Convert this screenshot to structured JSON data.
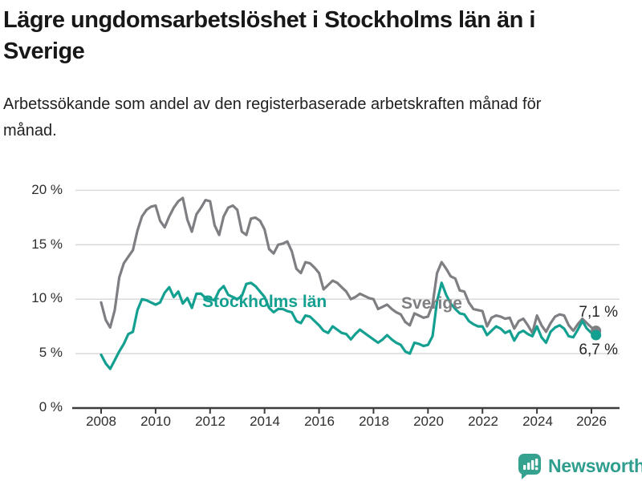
{
  "header": {
    "title": "Lägre ungdomsarbetslöshet i Stockholms län än i Sverige",
    "subtitle": "Arbetssökande som andel av den registerbaserade arbetskraften månad för månad."
  },
  "chart_data": {
    "type": "line",
    "title": "Lägre ungdomsarbetslöshet i Stockholms län än i Sverige",
    "xlabel": "",
    "ylabel": "",
    "x_start": 2008.0,
    "x_step": 0.1666667,
    "xlim": [
      2007.0,
      2027.0
    ],
    "ylim": [
      0,
      21
    ],
    "grid": "horizontal",
    "legend_position": "inline-labels",
    "y_tick_labels": [
      "20 %",
      "15 %",
      "10 %",
      "5 %",
      "0 %"
    ],
    "y_tick_values": [
      20,
      15,
      10,
      5,
      0
    ],
    "x_tick_labels": [
      "2008",
      "2010",
      "2012",
      "2014",
      "2016",
      "2018",
      "2020",
      "2022",
      "2024",
      "2026"
    ],
    "x_tick_values": [
      2008,
      2010,
      2012,
      2014,
      2016,
      2018,
      2020,
      2022,
      2024,
      2026
    ],
    "series": [
      {
        "name": "Sverige",
        "color": "#7f7f83",
        "end_value": 7.1,
        "end_label": "7,1 %",
        "values": [
          9.7,
          8.1,
          7.4,
          9.0,
          12.0,
          13.3,
          13.9,
          14.5,
          16.3,
          17.6,
          18.2,
          18.5,
          18.6,
          17.2,
          16.6,
          17.6,
          18.4,
          19.0,
          19.3,
          17.3,
          16.2,
          17.8,
          18.4,
          19.1,
          19.0,
          16.8,
          15.9,
          17.6,
          18.4,
          18.6,
          18.2,
          16.2,
          15.9,
          17.4,
          17.5,
          17.2,
          16.4,
          14.6,
          14.2,
          15.0,
          15.1,
          15.3,
          14.4,
          12.8,
          12.4,
          13.4,
          13.3,
          12.9,
          12.4,
          10.9,
          11.3,
          11.7,
          11.5,
          11.1,
          10.7,
          10.0,
          10.2,
          10.5,
          10.3,
          10.1,
          10.0,
          9.1,
          9.3,
          9.5,
          9.1,
          8.8,
          8.6,
          7.9,
          7.6,
          8.7,
          8.5,
          8.3,
          8.4,
          9.5,
          12.4,
          13.4,
          12.8,
          12.1,
          11.9,
          10.8,
          10.7,
          9.7,
          9.1,
          9.0,
          8.9,
          7.5,
          8.3,
          8.5,
          8.4,
          8.2,
          8.3,
          7.3,
          8.0,
          8.2,
          7.6,
          6.9,
          8.5,
          7.6,
          7.0,
          7.8,
          8.4,
          8.6,
          8.5,
          7.6,
          7.1,
          7.7,
          8.2,
          7.8,
          7.4,
          7.1
        ]
      },
      {
        "name": "Stockholms län",
        "color": "#14a090",
        "end_value": 6.7,
        "end_label": "6,7 %",
        "values": [
          4.9,
          4.1,
          3.6,
          4.4,
          5.2,
          5.9,
          6.8,
          7.0,
          9.0,
          10.0,
          9.9,
          9.7,
          9.5,
          9.7,
          10.6,
          11.1,
          10.2,
          10.7,
          9.6,
          10.1,
          9.2,
          10.5,
          10.5,
          10.1,
          10.0,
          9.9,
          10.8,
          11.2,
          10.4,
          10.2,
          10.0,
          10.3,
          11.4,
          11.5,
          11.2,
          10.7,
          10.2,
          9.2,
          8.8,
          9.1,
          9.1,
          8.9,
          8.8,
          8.0,
          7.8,
          8.5,
          8.4,
          8.0,
          7.6,
          7.1,
          6.9,
          7.5,
          7.2,
          6.9,
          6.8,
          6.3,
          6.8,
          7.2,
          6.9,
          6.6,
          6.3,
          6.0,
          6.3,
          6.7,
          6.3,
          6.0,
          5.8,
          5.2,
          5.0,
          6.0,
          5.9,
          5.7,
          5.8,
          6.6,
          9.8,
          11.5,
          10.4,
          9.6,
          9.1,
          8.7,
          8.6,
          8.0,
          7.7,
          7.5,
          7.5,
          6.7,
          7.1,
          7.5,
          7.3,
          6.9,
          7.1,
          6.2,
          6.9,
          7.1,
          6.8,
          6.6,
          7.5,
          6.5,
          6.0,
          7.0,
          7.4,
          7.6,
          7.3,
          6.6,
          6.5,
          7.2,
          8.0,
          7.3,
          6.9,
          6.7
        ]
      }
    ]
  },
  "footer": {
    "brand": "Newsworthy",
    "brand_color": "#2f9e8e",
    "icon": "newsworthy-speech-bubble-bar-chart-icon"
  }
}
